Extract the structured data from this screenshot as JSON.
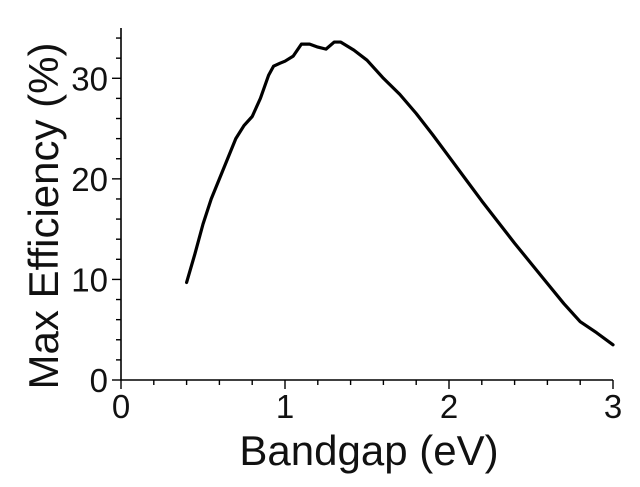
{
  "chart_data": {
    "type": "line",
    "title": "",
    "xlabel": "Bandgap (eV)",
    "ylabel": "Max Efficiency (%)",
    "xlim": [
      0,
      3
    ],
    "ylim": [
      0,
      35
    ],
    "xticks": [
      0,
      1,
      2,
      3
    ],
    "yticks": [
      0,
      10,
      20,
      30
    ],
    "grid": false,
    "series": [
      {
        "color": "#000000",
        "x": [
          0.4,
          0.45,
          0.5,
          0.55,
          0.6,
          0.65,
          0.7,
          0.75,
          0.8,
          0.85,
          0.9,
          0.93,
          0.97,
          1.0,
          1.05,
          1.1,
          1.15,
          1.2,
          1.25,
          1.3,
          1.34,
          1.38,
          1.42,
          1.5,
          1.6,
          1.7,
          1.8,
          1.9,
          2.0,
          2.1,
          2.2,
          2.3,
          2.4,
          2.5,
          2.6,
          2.7,
          2.8,
          2.9,
          3.0
        ],
        "y": [
          9.7,
          12.5,
          15.5,
          18.0,
          20.0,
          22.0,
          24.0,
          25.3,
          26.2,
          28.0,
          30.3,
          31.2,
          31.5,
          31.7,
          32.2,
          33.4,
          33.4,
          33.1,
          32.9,
          33.6,
          33.6,
          33.2,
          32.8,
          31.8,
          30.0,
          28.4,
          26.5,
          24.4,
          22.2,
          20.0,
          17.8,
          15.7,
          13.6,
          11.6,
          9.6,
          7.6,
          5.8,
          4.7,
          3.5
        ]
      }
    ]
  }
}
